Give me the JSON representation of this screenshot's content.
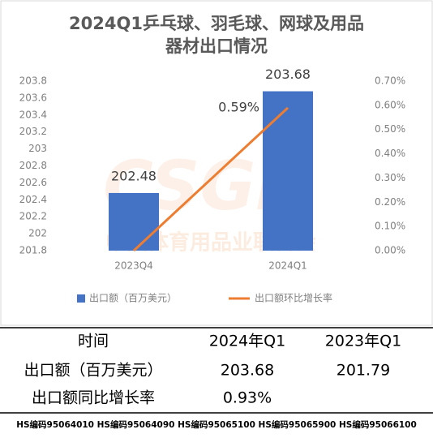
{
  "chart_data": {
    "type": "bar",
    "title": [
      "2024Q1乒乓球、羽毛球、网球及用品",
      "器材出口情况"
    ],
    "watermark": [
      "CSGF",
      "中国体育用品业联合会"
    ],
    "categories": [
      "2023Q4",
      "2024Q1"
    ],
    "series": [
      {
        "name": "出口额（百万美元）",
        "type": "bar",
        "color": "#4472c4",
        "values": [
          202.48,
          203.68
        ]
      },
      {
        "name": "出口额环比增长率",
        "type": "line",
        "axis": "y2",
        "color": "#ed7d31",
        "values": [
          0,
          0.59
        ],
        "value_labels": [
          null,
          "0.59%"
        ]
      }
    ],
    "ylim": [
      201.8,
      203.8
    ],
    "yticks": [
      201.8,
      202,
      202.2,
      202.4,
      202.6,
      202.8,
      203,
      203.2,
      203.4,
      203.6,
      203.8
    ],
    "y2lim": [
      0,
      0.7
    ],
    "y2ticks": [
      {
        "value": 0,
        "label": "0.00%"
      },
      {
        "value": 0.1,
        "label": "0.10%"
      },
      {
        "value": 0.2,
        "label": "0.20%"
      },
      {
        "value": 0.3,
        "label": "0.30%"
      },
      {
        "value": 0.4,
        "label": "0.40%"
      },
      {
        "value": 0.5,
        "label": "0.50%"
      },
      {
        "value": 0.6,
        "label": "0.60%"
      },
      {
        "value": 0.7,
        "label": "0.70%"
      }
    ],
    "legend": "bottom"
  },
  "table": {
    "header": [
      "时间",
      "2024年Q1",
      "2023年Q1"
    ],
    "rows": [
      [
        "出口额（百万美元）",
        "203.68",
        "201.79"
      ],
      [
        "出口额同比增长率",
        "0.93%"
      ]
    ]
  },
  "footer": "HS编码95064010 HS编码95064090 HS编码95065100 HS编码95065900 HS编码95066100"
}
